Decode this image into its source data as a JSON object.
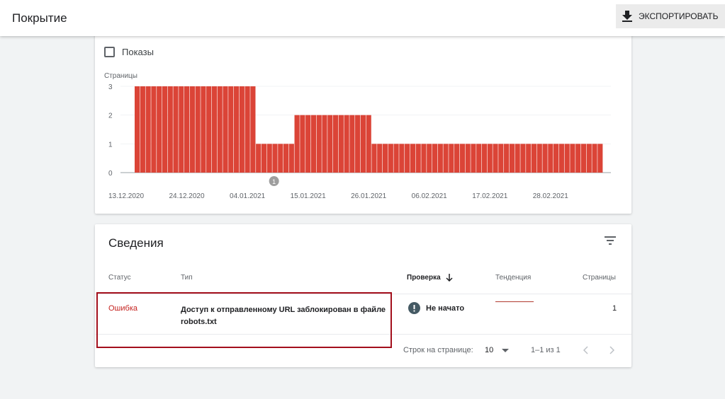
{
  "header": {
    "title": "Покрытие",
    "export_label": "ЭКСПОРТИРОВАТЬ",
    "export_icon": "download-icon"
  },
  "chart_card": {
    "checkbox_label": "Показы",
    "checkbox_checked": false
  },
  "chart_data": {
    "type": "bar",
    "ylabel": "Страницы",
    "ylim": [
      0,
      3
    ],
    "yticks": [
      "0",
      "1",
      "2",
      "3"
    ],
    "grid": true,
    "color": "#db4437",
    "xtick_labels": [
      "13.12.2020",
      "24.12.2020",
      "04.01.2021",
      "15.01.2021",
      "26.01.2021",
      "06.02.2021",
      "17.02.2021",
      "28.02.2021"
    ],
    "annotation": {
      "label": "1",
      "date": "06.01.2021"
    },
    "x": [
      "13.12.2020",
      "14.12.2020",
      "15.12.2020",
      "16.12.2020",
      "17.12.2020",
      "18.12.2020",
      "19.12.2020",
      "20.12.2020",
      "21.12.2020",
      "22.12.2020",
      "23.12.2020",
      "24.12.2020",
      "25.12.2020",
      "26.12.2020",
      "27.12.2020",
      "28.12.2020",
      "29.12.2020",
      "30.12.2020",
      "31.12.2020",
      "01.01.2021",
      "02.01.2021",
      "03.01.2021",
      "04.01.2021",
      "05.01.2021",
      "06.01.2021",
      "07.01.2021",
      "08.01.2021",
      "09.01.2021",
      "10.01.2021",
      "11.01.2021",
      "12.01.2021",
      "13.01.2021",
      "14.01.2021",
      "15.01.2021",
      "16.01.2021",
      "17.01.2021",
      "18.01.2021",
      "19.01.2021",
      "20.01.2021",
      "21.01.2021",
      "22.01.2021",
      "23.01.2021",
      "24.01.2021",
      "25.01.2021",
      "26.01.2021",
      "27.01.2021",
      "28.01.2021",
      "29.01.2021",
      "30.01.2021",
      "31.01.2021",
      "01.02.2021",
      "02.02.2021",
      "03.02.2021",
      "04.02.2021",
      "05.02.2021",
      "06.02.2021",
      "07.02.2021",
      "08.02.2021",
      "09.02.2021",
      "10.02.2021",
      "11.02.2021",
      "12.02.2021",
      "13.02.2021",
      "14.02.2021",
      "15.02.2021",
      "16.02.2021",
      "17.02.2021",
      "18.02.2021",
      "19.02.2021",
      "20.02.2021",
      "21.02.2021",
      "22.02.2021",
      "23.02.2021",
      "24.02.2021",
      "25.02.2021",
      "26.02.2021",
      "27.02.2021",
      "28.02.2021",
      "01.03.2021",
      "02.03.2021",
      "03.03.2021",
      "04.03.2021",
      "05.03.2021",
      "06.03.2021",
      "07.03.2021"
    ],
    "values": [
      3,
      3,
      3,
      3,
      3,
      3,
      3,
      3,
      3,
      3,
      3,
      3,
      3,
      3,
      3,
      3,
      3,
      3,
      3,
      3,
      3,
      3,
      1,
      1,
      1,
      1,
      1,
      1,
      1,
      2,
      2,
      2,
      2,
      2,
      2,
      2,
      2,
      2,
      2,
      2,
      2,
      2,
      2,
      1,
      1,
      1,
      1,
      1,
      1,
      1,
      1,
      1,
      1,
      1,
      1,
      1,
      1,
      1,
      1,
      1,
      1,
      1,
      1,
      1,
      1,
      1,
      1,
      1,
      1,
      1,
      1,
      1,
      1,
      1,
      1,
      1,
      1,
      1,
      1,
      1,
      1,
      1,
      1,
      1,
      1
    ]
  },
  "details": {
    "title": "Сведения",
    "columns": {
      "status": "Статус",
      "type": "Тип",
      "check": "Проверка",
      "trend": "Тенденция",
      "pages": "Страницы"
    },
    "rows": [
      {
        "status": "Ошибка",
        "type_line1": "Доступ к отправленному URL заблокирован в файле",
        "type_line2": "robots.txt",
        "check": "Не начато",
        "pages": "1"
      }
    ],
    "footer": {
      "rows_label": "Строк на странице:",
      "rows_value": "10",
      "range": "1–1 из 1"
    },
    "colors": {
      "error": "#c5221f",
      "highlight": "#a30f1c"
    }
  }
}
